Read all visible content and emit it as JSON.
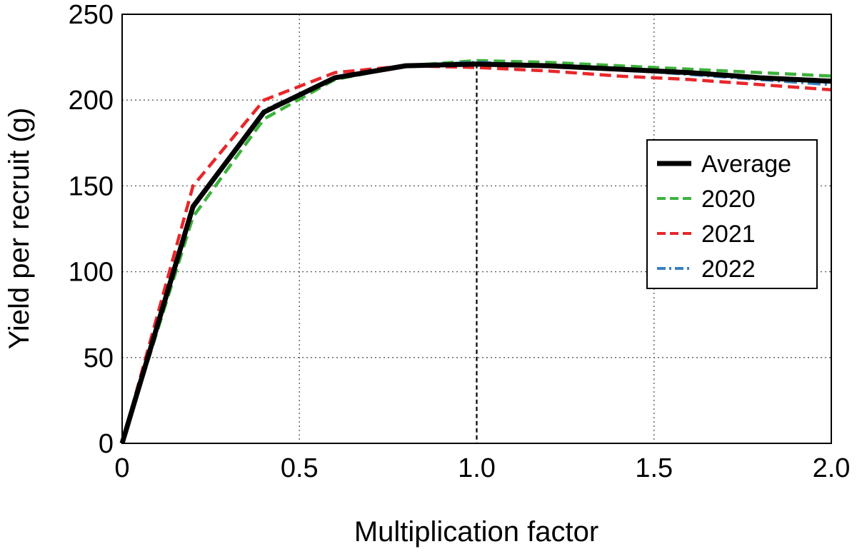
{
  "chart_data": {
    "type": "line",
    "xlabel": "Multiplication factor",
    "ylabel": "Yield per recruit (g)",
    "xlim": [
      0,
      2.0
    ],
    "ylim": [
      0,
      250
    ],
    "x_ticks": [
      0,
      0.5,
      1.0,
      1.5,
      2.0
    ],
    "x_tick_labels": [
      "0",
      "0.5",
      "1.0",
      "1.5",
      "2.0"
    ],
    "y_ticks": [
      0,
      50,
      100,
      150,
      200,
      250
    ],
    "y_tick_labels": [
      "0",
      "50",
      "100",
      "150",
      "200",
      "250"
    ],
    "grid": "dotted",
    "legend_position": "right",
    "reference_line_x": 1.0,
    "x": [
      0,
      0.2,
      0.4,
      0.6,
      0.8,
      1.0,
      1.2,
      1.4,
      1.6,
      1.8,
      2.0
    ],
    "series": [
      {
        "name": "Average",
        "color": "#000000",
        "style": "solid",
        "values": [
          0,
          138,
          193,
          213,
          220,
          221,
          220,
          218,
          216,
          213,
          211
        ]
      },
      {
        "name": "2020",
        "color": "#3db23d",
        "style": "dashed",
        "values": [
          0,
          132,
          189,
          212,
          220,
          223,
          222,
          220,
          218,
          216,
          214
        ]
      },
      {
        "name": "2021",
        "color": "#e8262a",
        "style": "dashed",
        "values": [
          0,
          150,
          200,
          216,
          220,
          219,
          217,
          214,
          212,
          209,
          206
        ]
      },
      {
        "name": "2022",
        "color": "#3a7fc1",
        "style": "dashdot",
        "values": [
          0,
          137,
          194,
          213,
          220,
          222,
          220,
          218,
          215,
          212,
          209
        ]
      }
    ]
  }
}
